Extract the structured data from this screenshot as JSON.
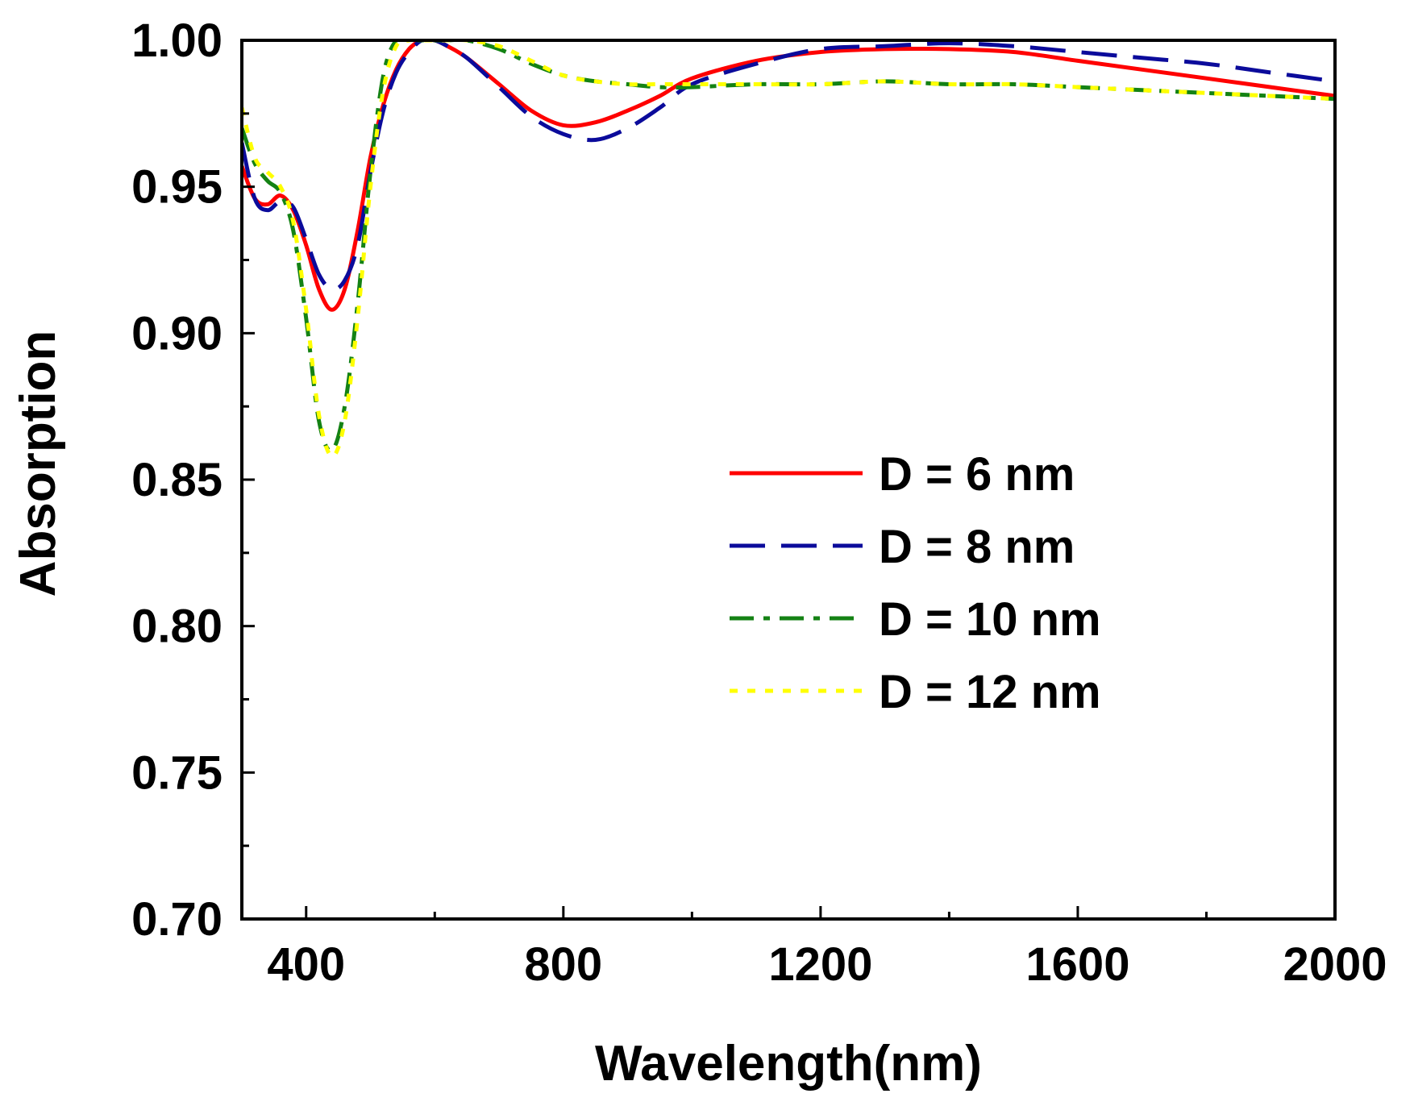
{
  "chart_data": {
    "type": "line",
    "title": "",
    "xlabel": "Wavelength(nm)",
    "ylabel": "Absorption",
    "xlim": [
      300,
      2000
    ],
    "ylim": [
      0.7,
      1.0
    ],
    "xticks": [
      400,
      800,
      1200,
      1600,
      2000
    ],
    "xtick_labels": [
      "400",
      "800",
      "1200",
      "1600",
      "2000"
    ],
    "xminor": [
      600,
      1000,
      1400,
      1800
    ],
    "yticks": [
      0.7,
      0.75,
      0.8,
      0.85,
      0.9,
      0.95,
      1.0
    ],
    "ytick_labels": [
      "0.70",
      "0.75",
      "0.80",
      "0.85",
      "0.90",
      "0.95",
      "1.00"
    ],
    "yminor": [
      0.725,
      0.775,
      0.825,
      0.875,
      0.925,
      0.975
    ],
    "grid": false,
    "legend_position": "center-right",
    "series": [
      {
        "name": "D = 6 nm",
        "color": "#ff0000",
        "dash": "solid",
        "x": [
          300,
          320,
          340,
          360,
          380,
          400,
          420,
          440,
          460,
          480,
          500,
          520,
          540,
          560,
          580,
          600,
          620,
          650,
          700,
          750,
          800,
          850,
          900,
          950,
          1000,
          1100,
          1200,
          1300,
          1400,
          1500,
          1600,
          1700,
          1800,
          1900,
          2000
        ],
        "y": [
          0.957,
          0.946,
          0.944,
          0.947,
          0.942,
          0.93,
          0.915,
          0.908,
          0.915,
          0.935,
          0.96,
          0.978,
          0.99,
          0.997,
          1.0,
          1.0,
          0.998,
          0.994,
          0.985,
          0.976,
          0.971,
          0.972,
          0.976,
          0.981,
          0.987,
          0.993,
          0.996,
          0.997,
          0.997,
          0.996,
          0.993,
          0.99,
          0.987,
          0.984,
          0.981
        ]
      },
      {
        "name": "D = 8 nm",
        "color": "#0b0b9b",
        "dash": "dashed",
        "x": [
          300,
          320,
          340,
          360,
          380,
          400,
          420,
          440,
          460,
          480,
          500,
          520,
          540,
          560,
          580,
          600,
          620,
          650,
          700,
          750,
          800,
          850,
          900,
          950,
          1000,
          1100,
          1200,
          1300,
          1400,
          1500,
          1600,
          1700,
          1800,
          1900,
          2000
        ],
        "y": [
          0.965,
          0.946,
          0.942,
          0.945,
          0.943,
          0.932,
          0.92,
          0.915,
          0.918,
          0.93,
          0.955,
          0.976,
          0.989,
          0.996,
          1.0,
          1.0,
          0.998,
          0.994,
          0.984,
          0.974,
          0.968,
          0.966,
          0.97,
          0.977,
          0.985,
          0.992,
          0.997,
          0.998,
          0.999,
          0.998,
          0.996,
          0.994,
          0.992,
          0.989,
          0.986
        ]
      },
      {
        "name": "D = 10 nm",
        "color": "#148214",
        "dash": "dashdot",
        "x": [
          300,
          320,
          340,
          360,
          380,
          400,
          420,
          440,
          460,
          480,
          500,
          520,
          540,
          560,
          580,
          600,
          620,
          650,
          700,
          750,
          800,
          850,
          900,
          950,
          1000,
          1100,
          1200,
          1300,
          1400,
          1500,
          1600,
          1700,
          1800,
          1900,
          2000
        ],
        "y": [
          0.97,
          0.958,
          0.952,
          0.948,
          0.935,
          0.905,
          0.87,
          0.86,
          0.875,
          0.91,
          0.955,
          0.988,
          1.0,
          1.0,
          1.0,
          1.0,
          1.0,
          1.0,
          0.997,
          0.992,
          0.988,
          0.986,
          0.985,
          0.984,
          0.984,
          0.985,
          0.985,
          0.986,
          0.985,
          0.985,
          0.984,
          0.983,
          0.982,
          0.981,
          0.98
        ]
      },
      {
        "name": "D = 12 nm",
        "color": "#ffff00",
        "dash": "dotted",
        "x": [
          300,
          320,
          340,
          360,
          380,
          400,
          420,
          440,
          460,
          480,
          500,
          520,
          540,
          560,
          580,
          600,
          620,
          650,
          700,
          750,
          800,
          850,
          900,
          950,
          1000,
          1100,
          1200,
          1300,
          1400,
          1500,
          1600,
          1700,
          1800,
          1900,
          2000
        ],
        "y": [
          0.977,
          0.96,
          0.955,
          0.95,
          0.938,
          0.908,
          0.872,
          0.858,
          0.87,
          0.905,
          0.95,
          0.983,
          0.998,
          1.0,
          1.0,
          1.0,
          1.0,
          1.0,
          0.998,
          0.993,
          0.988,
          0.986,
          0.985,
          0.985,
          0.985,
          0.985,
          0.985,
          0.986,
          0.985,
          0.985,
          0.984,
          0.983,
          0.982,
          0.981,
          0.98
        ]
      }
    ]
  }
}
